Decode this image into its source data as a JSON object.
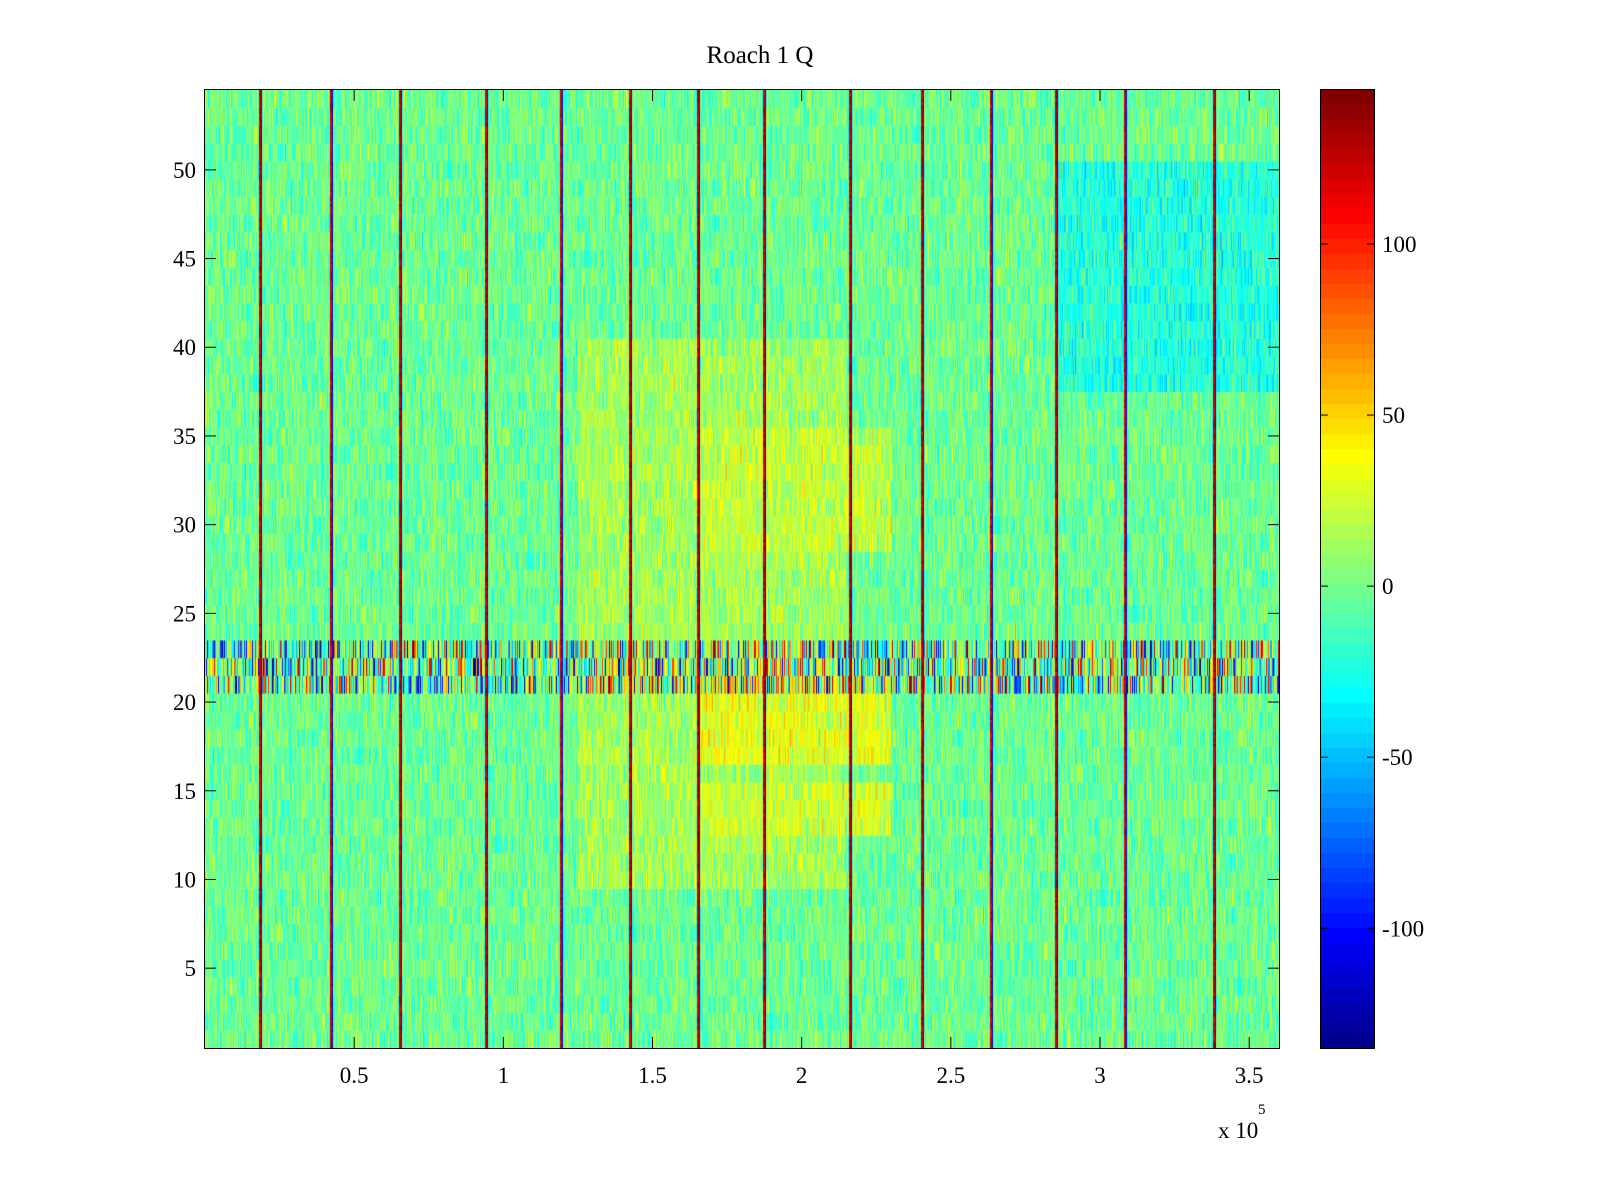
{
  "chart_data": {
    "type": "heatmap",
    "title": "Roach 1 Q",
    "xlabel": "",
    "ylabel": "",
    "x_exponent_label": "x 10",
    "x_exponent_power": "5",
    "xlim": [
      0,
      360000
    ],
    "ylim": [
      0.5,
      54.5
    ],
    "x_ticks": [
      0.5,
      1,
      1.5,
      2,
      2.5,
      3,
      3.5
    ],
    "x_tick_labels": [
      "0.5",
      "1",
      "1.5",
      "2",
      "2.5",
      "3",
      "3.5"
    ],
    "y_ticks": [
      5,
      10,
      15,
      20,
      25,
      30,
      35,
      40,
      45,
      50
    ],
    "y_tick_labels": [
      "5",
      "10",
      "15",
      "20",
      "25",
      "30",
      "35",
      "40",
      "45",
      "50"
    ],
    "rows": 54,
    "colormap": "jet",
    "color_limits": [
      -135,
      145
    ],
    "colorbar_ticks": [
      100,
      50,
      0,
      -50,
      -100
    ],
    "colorbar_tick_labels": [
      "100",
      "50",
      "0",
      "-50",
      "-100"
    ],
    "grid": false,
    "background_level": 0,
    "vertical_stripes_x": [
      18000,
      42000,
      65000,
      94000,
      119000,
      142000,
      165000,
      187000,
      216000,
      240000,
      263000,
      285000,
      308000,
      338000
    ],
    "high_noise_rows": [
      21,
      22,
      23
    ],
    "warm_regions": [
      {
        "x": [
          125000,
          215000
        ],
        "y": [
          10,
          40
        ],
        "level": 25
      },
      {
        "x": [
          165000,
          230000
        ],
        "y": [
          17,
          21
        ],
        "level": 55
      },
      {
        "x": [
          165000,
          230000
        ],
        "y": [
          29,
          35
        ],
        "level": 40
      },
      {
        "x": [
          165000,
          230000
        ],
        "y": [
          13,
          15
        ],
        "level": 45
      }
    ],
    "cool_regions": [
      {
        "x": [
          285000,
          360000
        ],
        "y": [
          38,
          50
        ],
        "level": -20
      }
    ]
  },
  "colors": {
    "background": "#ffffff",
    "axis": "#000000"
  }
}
